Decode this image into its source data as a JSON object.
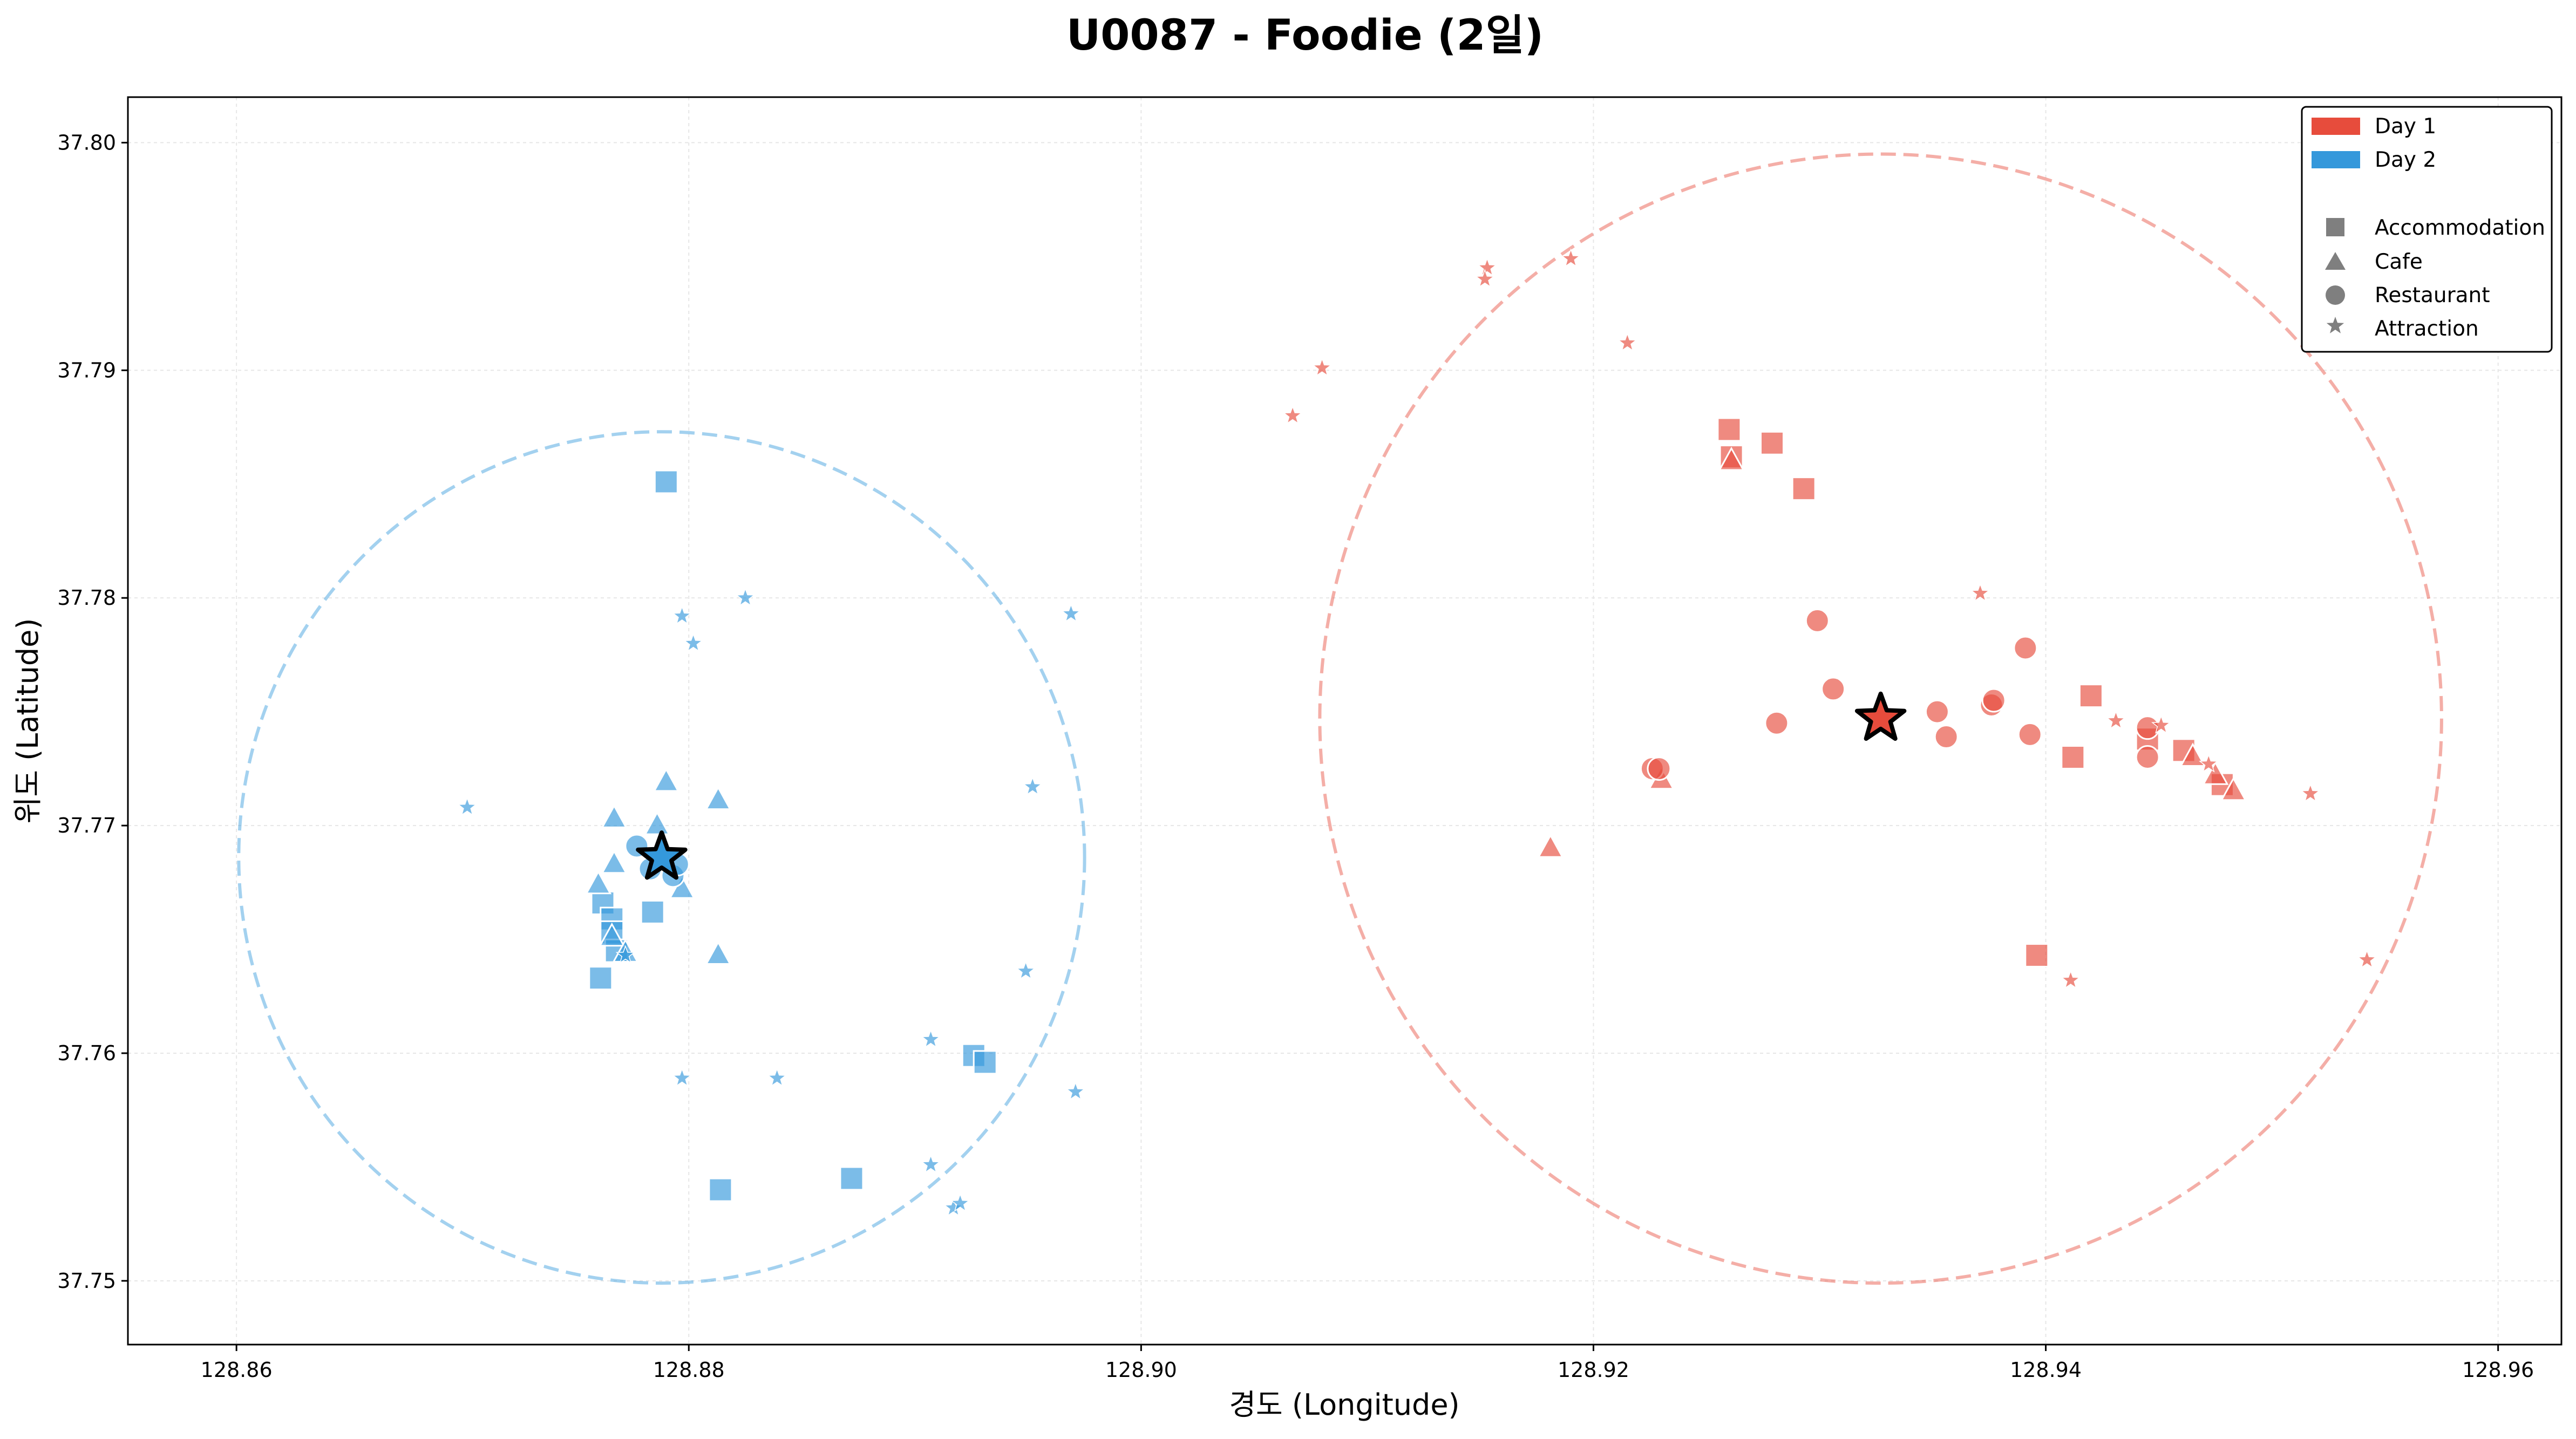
{
  "chart_data": {
    "type": "scatter",
    "title": "U0087 - Foodie (2일)",
    "xlabel": "경도 (Longitude)",
    "ylabel": "위도 (Latitude)",
    "xlim": [
      128.8552,
      128.9628
    ],
    "ylim": [
      37.7472,
      37.802
    ],
    "xticks": [
      128.86,
      128.88,
      128.9,
      128.92,
      128.94,
      128.96
    ],
    "xtick_labels": [
      "128.86",
      "128.88",
      "128.90",
      "128.92",
      "128.94",
      "128.96"
    ],
    "yticks": [
      37.75,
      37.76,
      37.77,
      37.78,
      37.79,
      37.8
    ],
    "ytick_labels": [
      "37.75",
      "37.76",
      "37.77",
      "37.78",
      "37.79",
      "37.80"
    ],
    "grid": true,
    "legend_position": "top-right",
    "legend": {
      "days": [
        {
          "label": "Day 1",
          "color": "#e74c3c"
        },
        {
          "label": "Day 2",
          "color": "#3498db"
        }
      ],
      "types": [
        {
          "label": "Accommodation",
          "shape": "square"
        },
        {
          "label": "Cafe",
          "shape": "triangle"
        },
        {
          "label": "Restaurant",
          "shape": "circle"
        },
        {
          "label": "Attraction",
          "shape": "star"
        }
      ]
    },
    "series": [
      {
        "name": "Day 1",
        "color": "#e74c3c",
        "center": [
          128.9327,
          37.7747
        ],
        "radius": 0.0248,
        "points": [
          {
            "x": 128.926,
            "y": 37.7874,
            "type": "square"
          },
          {
            "x": 128.9261,
            "y": 37.7862,
            "type": "square"
          },
          {
            "x": 128.9279,
            "y": 37.7868,
            "type": "square"
          },
          {
            "x": 128.9293,
            "y": 37.7848,
            "type": "square"
          },
          {
            "x": 128.942,
            "y": 37.7757,
            "type": "square"
          },
          {
            "x": 128.9412,
            "y": 37.773,
            "type": "square"
          },
          {
            "x": 128.9396,
            "y": 37.7643,
            "type": "square"
          },
          {
            "x": 128.9445,
            "y": 37.7738,
            "type": "square"
          },
          {
            "x": 128.9461,
            "y": 37.7733,
            "type": "square"
          },
          {
            "x": 128.9478,
            "y": 37.7718,
            "type": "square"
          },
          {
            "x": 128.9261,
            "y": 37.786,
            "type": "triangle"
          },
          {
            "x": 128.9181,
            "y": 37.769,
            "type": "triangle"
          },
          {
            "x": 128.923,
            "y": 37.772,
            "type": "triangle"
          },
          {
            "x": 128.9465,
            "y": 37.773,
            "type": "triangle"
          },
          {
            "x": 128.9475,
            "y": 37.7722,
            "type": "triangle"
          },
          {
            "x": 128.9483,
            "y": 37.7715,
            "type": "triangle"
          },
          {
            "x": 128.9299,
            "y": 37.779,
            "type": "circle"
          },
          {
            "x": 128.9306,
            "y": 37.776,
            "type": "circle"
          },
          {
            "x": 128.9281,
            "y": 37.7745,
            "type": "circle"
          },
          {
            "x": 128.9226,
            "y": 37.7725,
            "type": "circle"
          },
          {
            "x": 128.9229,
            "y": 37.7725,
            "type": "circle"
          },
          {
            "x": 128.9352,
            "y": 37.775,
            "type": "circle"
          },
          {
            "x": 128.9356,
            "y": 37.7739,
            "type": "circle"
          },
          {
            "x": 128.9376,
            "y": 37.7753,
            "type": "circle"
          },
          {
            "x": 128.9377,
            "y": 37.7755,
            "type": "circle"
          },
          {
            "x": 128.9391,
            "y": 37.7778,
            "type": "circle"
          },
          {
            "x": 128.9393,
            "y": 37.774,
            "type": "circle"
          },
          {
            "x": 128.9445,
            "y": 37.7743,
            "type": "circle"
          },
          {
            "x": 128.9445,
            "y": 37.773,
            "type": "circle"
          },
          {
            "x": 128.9153,
            "y": 37.7945,
            "type": "star"
          },
          {
            "x": 128.9152,
            "y": 37.794,
            "type": "star"
          },
          {
            "x": 128.919,
            "y": 37.7949,
            "type": "star"
          },
          {
            "x": 128.908,
            "y": 37.7901,
            "type": "star"
          },
          {
            "x": 128.9067,
            "y": 37.788,
            "type": "star"
          },
          {
            "x": 128.9215,
            "y": 37.7912,
            "type": "star"
          },
          {
            "x": 128.9371,
            "y": 37.7802,
            "type": "star"
          },
          {
            "x": 128.9431,
            "y": 37.7746,
            "type": "star"
          },
          {
            "x": 128.9451,
            "y": 37.7744,
            "type": "star"
          },
          {
            "x": 128.9472,
            "y": 37.7727,
            "type": "star"
          },
          {
            "x": 128.9517,
            "y": 37.7714,
            "type": "star"
          },
          {
            "x": 128.9542,
            "y": 37.7641,
            "type": "star"
          },
          {
            "x": 128.9411,
            "y": 37.7632,
            "type": "star"
          }
        ]
      },
      {
        "name": "Day 2",
        "color": "#3498db",
        "center": [
          128.8788,
          37.7686
        ],
        "radius": 0.0187,
        "points": [
          {
            "x": 128.879,
            "y": 37.7851,
            "type": "square"
          },
          {
            "x": 128.8762,
            "y": 37.7666,
            "type": "square"
          },
          {
            "x": 128.8766,
            "y": 37.7659,
            "type": "square"
          },
          {
            "x": 128.8766,
            "y": 37.7653,
            "type": "square"
          },
          {
            "x": 128.8768,
            "y": 37.7645,
            "type": "square"
          },
          {
            "x": 128.8784,
            "y": 37.7662,
            "type": "square"
          },
          {
            "x": 128.8761,
            "y": 37.7633,
            "type": "square"
          },
          {
            "x": 128.8926,
            "y": 37.7599,
            "type": "square"
          },
          {
            "x": 128.8931,
            "y": 37.7596,
            "type": "square"
          },
          {
            "x": 128.8872,
            "y": 37.7545,
            "type": "square"
          },
          {
            "x": 128.8814,
            "y": 37.754,
            "type": "square"
          },
          {
            "x": 128.879,
            "y": 37.7719,
            "type": "triangle"
          },
          {
            "x": 128.8813,
            "y": 37.7711,
            "type": "triangle"
          },
          {
            "x": 128.8767,
            "y": 37.7703,
            "type": "triangle"
          },
          {
            "x": 128.8786,
            "y": 37.77,
            "type": "triangle"
          },
          {
            "x": 128.8767,
            "y": 37.7683,
            "type": "triangle"
          },
          {
            "x": 128.876,
            "y": 37.7674,
            "type": "triangle"
          },
          {
            "x": 128.8797,
            "y": 37.7672,
            "type": "triangle"
          },
          {
            "x": 128.8766,
            "y": 37.7651,
            "type": "triangle"
          },
          {
            "x": 128.8772,
            "y": 37.7644,
            "type": "triangle"
          },
          {
            "x": 128.8813,
            "y": 37.7643,
            "type": "triangle"
          },
          {
            "x": 128.8777,
            "y": 37.7691,
            "type": "circle"
          },
          {
            "x": 128.8783,
            "y": 37.7681,
            "type": "circle"
          },
          {
            "x": 128.8793,
            "y": 37.7678,
            "type": "circle"
          },
          {
            "x": 128.8795,
            "y": 37.7683,
            "type": "circle"
          },
          {
            "x": 128.8702,
            "y": 37.7708,
            "type": "star"
          },
          {
            "x": 128.8797,
            "y": 37.7792,
            "type": "star"
          },
          {
            "x": 128.8802,
            "y": 37.778,
            "type": "star"
          },
          {
            "x": 128.8825,
            "y": 37.78,
            "type": "star"
          },
          {
            "x": 128.8969,
            "y": 37.7793,
            "type": "star"
          },
          {
            "x": 128.8952,
            "y": 37.7717,
            "type": "star"
          },
          {
            "x": 128.8949,
            "y": 37.7636,
            "type": "star"
          },
          {
            "x": 128.8907,
            "y": 37.7606,
            "type": "star"
          },
          {
            "x": 128.8971,
            "y": 37.7583,
            "type": "star"
          },
          {
            "x": 128.8839,
            "y": 37.7589,
            "type": "star"
          },
          {
            "x": 128.8797,
            "y": 37.7589,
            "type": "star"
          },
          {
            "x": 128.8907,
            "y": 37.7551,
            "type": "star"
          },
          {
            "x": 128.8917,
            "y": 37.7532,
            "type": "star"
          },
          {
            "x": 128.892,
            "y": 37.7534,
            "type": "star"
          },
          {
            "x": 128.8772,
            "y": 37.7643,
            "type": "star"
          }
        ]
      }
    ]
  }
}
